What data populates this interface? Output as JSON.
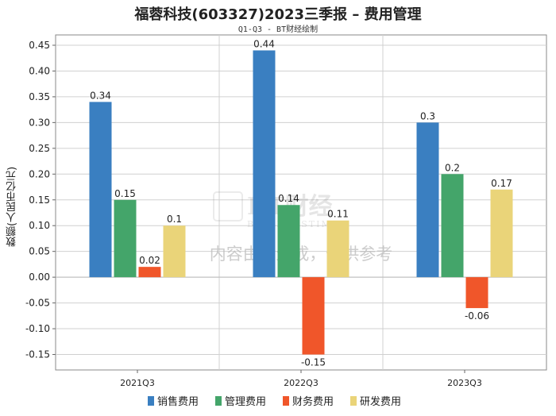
{
  "chart_data": {
    "type": "bar",
    "title": "福蓉科技(603327)2023三季报 – 费用管理",
    "subtitle": "Q1-Q3 - BT财经绘制",
    "xlabel": "",
    "ylabel": "数额(人民币亿元)",
    "categories": [
      "2021Q3",
      "2022Q3",
      "2023Q3"
    ],
    "ylim": [
      -0.18,
      0.47
    ],
    "yticks": [
      -0.15,
      -0.1,
      -0.05,
      0.0,
      0.05,
      0.1,
      0.15,
      0.2,
      0.25,
      0.3,
      0.35,
      0.4,
      0.45
    ],
    "ytick_labels": [
      "-0.15",
      "-0.10",
      "-0.05",
      "0.00",
      "0.05",
      "0.10",
      "0.15",
      "0.20",
      "0.25",
      "0.30",
      "0.35",
      "0.40",
      "0.45"
    ],
    "series": [
      {
        "name": "销售费用",
        "color": "#3a7fc1",
        "values": [
          0.34,
          0.44,
          0.3
        ],
        "labels": [
          "0.34",
          "0.44",
          "0.3"
        ]
      },
      {
        "name": "管理费用",
        "color": "#44a56a",
        "values": [
          0.15,
          0.14,
          0.2
        ],
        "labels": [
          "0.15",
          "0.14",
          "0.2"
        ]
      },
      {
        "name": "财务费用",
        "color": "#f0562a",
        "values": [
          0.02,
          -0.15,
          -0.06
        ],
        "labels": [
          "0.02",
          "-0.15",
          "-0.06"
        ]
      },
      {
        "name": "研发费用",
        "color": "#ead479",
        "values": [
          0.1,
          0.11,
          0.17
        ],
        "labels": [
          "0.1",
          "0.11",
          "0.17"
        ]
      }
    ],
    "grid": true,
    "legend_position": "bottom"
  },
  "watermark": {
    "brand": "BT财经",
    "brand_sub": "BUSINESSTIMES",
    "notice": "内容由AI生成，仅供参考"
  }
}
